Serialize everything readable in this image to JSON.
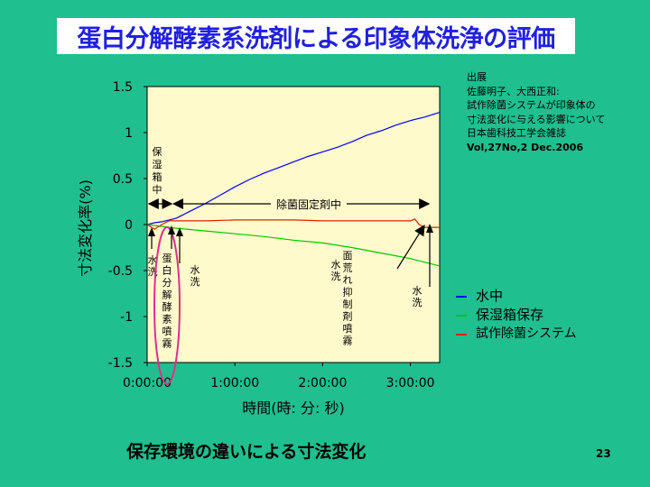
{
  "slide": {
    "title": "蛋白分解酵素系洗剤による印象体洗浄の評価",
    "caption": "保存環境の違いによる寸法変化",
    "page_number": "23"
  },
  "source": {
    "lines": [
      "出展",
      "佐藤明子、大西正和:",
      "試作除菌システムが印象体の",
      "寸法変化に与える影響について",
      "日本歯科技工学会雑誌"
    ],
    "citation": "Vol,27No,2 Dec.2006"
  },
  "colors": {
    "background": "#1fbf8f",
    "plot_area": "#fffacc",
    "title_text": "#2020e0",
    "series_water": "#0000ff",
    "series_humid": "#00c800",
    "series_system": "#e02000",
    "highlight_ellipse": "#e0308a"
  },
  "chart_data": {
    "type": "line",
    "title": "",
    "xlabel": "時間(時: 分: 秒)",
    "ylabel": "寸法変化率(%)",
    "x_unit": "minutes",
    "xlim": [
      0,
      200
    ],
    "ylim": [
      -1.5,
      1.5
    ],
    "x_ticks": [
      {
        "value": 0,
        "label": "0:00:00"
      },
      {
        "value": 60,
        "label": "1:00:00"
      },
      {
        "value": 120,
        "label": "2:00:00"
      },
      {
        "value": 180,
        "label": "3:00:00"
      }
    ],
    "y_ticks": [
      {
        "value": 1.5,
        "label": "1.5"
      },
      {
        "value": 1,
        "label": "1"
      },
      {
        "value": 0.5,
        "label": "0.5"
      },
      {
        "value": 0,
        "label": "0"
      },
      {
        "value": -0.5,
        "label": "-0.5"
      },
      {
        "value": -1,
        "label": "-1"
      },
      {
        "value": -1.5,
        "label": "-1.5"
      }
    ],
    "grid": false,
    "legend_position": "right",
    "series": [
      {
        "name": "水中",
        "color": "#0000ff",
        "x": [
          0,
          5,
          10,
          20,
          30,
          40,
          50,
          60,
          70,
          80,
          90,
          100,
          110,
          120,
          130,
          140,
          150,
          160,
          170,
          180,
          190,
          200
        ],
        "y": [
          0,
          0.02,
          0.03,
          0.07,
          0.15,
          0.23,
          0.32,
          0.41,
          0.49,
          0.56,
          0.62,
          0.68,
          0.74,
          0.79,
          0.84,
          0.9,
          0.97,
          1.02,
          1.08,
          1.13,
          1.17,
          1.22
        ]
      },
      {
        "name": "保湿箱保存",
        "color": "#00c800",
        "x": [
          0,
          10,
          20,
          40,
          60,
          80,
          100,
          120,
          140,
          160,
          180,
          200
        ],
        "y": [
          0,
          -0.02,
          -0.04,
          -0.07,
          -0.1,
          -0.13,
          -0.17,
          -0.2,
          -0.25,
          -0.31,
          -0.37,
          -0.45
        ]
      },
      {
        "name": "試作除菌システム",
        "color": "#e02000",
        "x": [
          0,
          5,
          10,
          15,
          20,
          40,
          60,
          80,
          100,
          120,
          140,
          160,
          180,
          183,
          186,
          190,
          200
        ],
        "y": [
          0,
          -0.05,
          0.0,
          0.04,
          0.04,
          0.04,
          0.05,
          0.05,
          0.05,
          0.04,
          0.04,
          0.04,
          0.04,
          0.06,
          0.0,
          -0.03,
          -0.03
        ]
      }
    ],
    "annotations": {
      "span_label": "除菌固定剤中",
      "span_from": 18,
      "span_to": 200,
      "vertical_label": "保湿箱中",
      "arrow_labels": [
        {
          "text": "水洗",
          "x": 4
        },
        {
          "text": "蛋白分解酵素噴霧",
          "x": 14
        },
        {
          "text": "水洗",
          "x": 18
        },
        {
          "text": "水洗",
          "x": 130
        },
        {
          "text": "面荒れ抑制剤噴霧",
          "x": 138
        },
        {
          "text": "水洗",
          "x": 190
        }
      ]
    }
  }
}
